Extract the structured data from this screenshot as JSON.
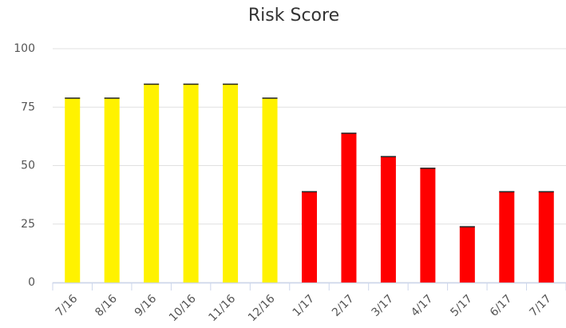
{
  "chart_data": {
    "type": "bar",
    "title": "Risk Score",
    "categories": [
      "7/16",
      "8/16",
      "9/16",
      "10/16",
      "11/16",
      "12/16",
      "1/17",
      "2/17",
      "3/17",
      "4/17",
      "5/17",
      "6/17",
      "7/17"
    ],
    "values": [
      79,
      79,
      85,
      85,
      85,
      79,
      39,
      64,
      54,
      49,
      24,
      39,
      39
    ],
    "colors": [
      "#fff200",
      "#fff200",
      "#fff200",
      "#fff200",
      "#fff200",
      "#fff200",
      "#ff0000",
      "#ff0000",
      "#ff0000",
      "#ff0000",
      "#ff0000",
      "#ff0000",
      "#ff0000"
    ],
    "ylim": [
      0,
      100
    ],
    "yticks": [
      0,
      25,
      50,
      75,
      100
    ],
    "grid": true
  }
}
